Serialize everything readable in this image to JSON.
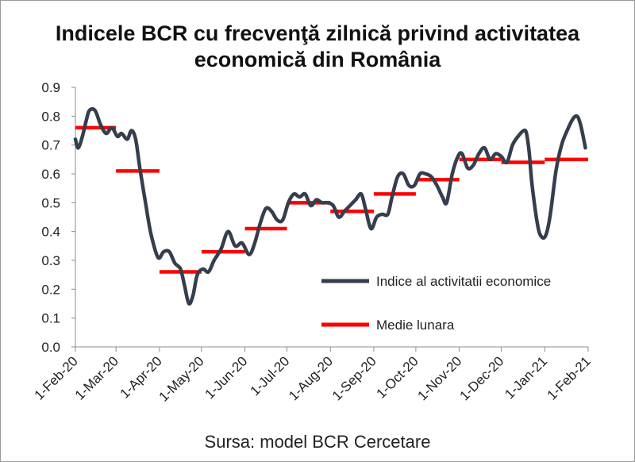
{
  "chart_data": {
    "type": "line",
    "title_lines": [
      "Indicele BCR cu frecvenţă zilnică privind activitatea",
      "economică din România"
    ],
    "source": "Sursa: model BCR Cercetare",
    "xlabel": "",
    "ylabel": "",
    "ylim": [
      0,
      0.9
    ],
    "y_ticks": [
      "0.0",
      "0.1",
      "0.2",
      "0.3",
      "0.4",
      "0.5",
      "0.6",
      "0.7",
      "0.8",
      "0.9"
    ],
    "x_ticks": [
      "1-Feb-20",
      "1-Mar-20",
      "1-Apr-20",
      "1-May-20",
      "1-Jun-20",
      "1-Jul-20",
      "1-Aug-20",
      "1-Sep-20",
      "1-Oct-20",
      "1-Nov-20",
      "1-Dec-20",
      "1-Jan-21",
      "1-Feb-21"
    ],
    "grid": false,
    "legend_position": "lower-right",
    "series": [
      {
        "name": "Indice al activitatii economice",
        "color": "#353e4d",
        "kind": "daily",
        "points": [
          [
            "2020-02-01",
            0.72
          ],
          [
            "2020-02-03",
            0.69
          ],
          [
            "2020-02-06",
            0.73
          ],
          [
            "2020-02-09",
            0.79
          ],
          [
            "2020-02-11",
            0.82
          ],
          [
            "2020-02-15",
            0.82
          ],
          [
            "2020-02-19",
            0.77
          ],
          [
            "2020-02-23",
            0.74
          ],
          [
            "2020-02-27",
            0.76
          ],
          [
            "2020-03-02",
            0.73
          ],
          [
            "2020-03-05",
            0.74
          ],
          [
            "2020-03-09",
            0.72
          ],
          [
            "2020-03-12",
            0.75
          ],
          [
            "2020-03-15",
            0.72
          ],
          [
            "2020-03-18",
            0.62
          ],
          [
            "2020-03-22",
            0.5
          ],
          [
            "2020-03-26",
            0.39
          ],
          [
            "2020-03-31",
            0.31
          ],
          [
            "2020-04-04",
            0.33
          ],
          [
            "2020-04-08",
            0.33
          ],
          [
            "2020-04-12",
            0.29
          ],
          [
            "2020-04-16",
            0.27
          ],
          [
            "2020-04-19",
            0.21
          ],
          [
            "2020-04-22",
            0.15
          ],
          [
            "2020-04-25",
            0.18
          ],
          [
            "2020-04-28",
            0.25
          ],
          [
            "2020-05-02",
            0.27
          ],
          [
            "2020-05-06",
            0.26
          ],
          [
            "2020-05-10",
            0.3
          ],
          [
            "2020-05-15",
            0.34
          ],
          [
            "2020-05-20",
            0.4
          ],
          [
            "2020-05-25",
            0.35
          ],
          [
            "2020-05-30",
            0.36
          ],
          [
            "2020-06-04",
            0.32
          ],
          [
            "2020-06-08",
            0.36
          ],
          [
            "2020-06-12",
            0.43
          ],
          [
            "2020-06-16",
            0.48
          ],
          [
            "2020-06-20",
            0.47
          ],
          [
            "2020-06-24",
            0.44
          ],
          [
            "2020-06-28",
            0.44
          ],
          [
            "2020-07-02",
            0.5
          ],
          [
            "2020-07-06",
            0.53
          ],
          [
            "2020-07-10",
            0.52
          ],
          [
            "2020-07-14",
            0.53
          ],
          [
            "2020-07-18",
            0.49
          ],
          [
            "2020-07-22",
            0.51
          ],
          [
            "2020-07-26",
            0.5
          ],
          [
            "2020-07-30",
            0.5
          ],
          [
            "2020-08-03",
            0.49
          ],
          [
            "2020-08-07",
            0.45
          ],
          [
            "2020-08-11",
            0.47
          ],
          [
            "2020-08-15",
            0.49
          ],
          [
            "2020-08-19",
            0.51
          ],
          [
            "2020-08-23",
            0.53
          ],
          [
            "2020-08-26",
            0.48
          ],
          [
            "2020-08-30",
            0.41
          ],
          [
            "2020-09-03",
            0.45
          ],
          [
            "2020-09-07",
            0.46
          ],
          [
            "2020-09-11",
            0.46
          ],
          [
            "2020-09-14",
            0.52
          ],
          [
            "2020-09-18",
            0.59
          ],
          [
            "2020-09-22",
            0.6
          ],
          [
            "2020-09-26",
            0.56
          ],
          [
            "2020-09-30",
            0.56
          ],
          [
            "2020-10-04",
            0.6
          ],
          [
            "2020-10-08",
            0.6
          ],
          [
            "2020-10-12",
            0.59
          ],
          [
            "2020-10-16",
            0.56
          ],
          [
            "2020-10-20",
            0.52
          ],
          [
            "2020-10-23",
            0.5
          ],
          [
            "2020-10-27",
            0.6
          ],
          [
            "2020-10-31",
            0.66
          ],
          [
            "2020-11-03",
            0.67
          ],
          [
            "2020-11-07",
            0.62
          ],
          [
            "2020-11-11",
            0.63
          ],
          [
            "2020-11-15",
            0.67
          ],
          [
            "2020-11-19",
            0.69
          ],
          [
            "2020-11-23",
            0.65
          ],
          [
            "2020-11-27",
            0.67
          ],
          [
            "2020-12-01",
            0.66
          ],
          [
            "2020-12-05",
            0.64
          ],
          [
            "2020-12-09",
            0.7
          ],
          [
            "2020-12-13",
            0.73
          ],
          [
            "2020-12-17",
            0.75
          ],
          [
            "2020-12-19",
            0.74
          ],
          [
            "2020-12-21",
            0.67
          ],
          [
            "2020-12-23",
            0.56
          ],
          [
            "2020-12-27",
            0.42
          ],
          [
            "2020-12-30",
            0.38
          ],
          [
            "2021-01-02",
            0.39
          ],
          [
            "2021-01-05",
            0.46
          ],
          [
            "2021-01-09",
            0.61
          ],
          [
            "2021-01-13",
            0.7
          ],
          [
            "2021-01-17",
            0.75
          ],
          [
            "2021-01-21",
            0.79
          ],
          [
            "2021-01-24",
            0.8
          ],
          [
            "2021-01-26",
            0.78
          ],
          [
            "2021-01-28",
            0.74
          ],
          [
            "2021-01-30",
            0.69
          ]
        ]
      },
      {
        "name": "Medie lunara",
        "color": "#ff0000",
        "kind": "monthly",
        "segments": [
          [
            "2020-02-01",
            "2020-03-01",
            0.76
          ],
          [
            "2020-03-01",
            "2020-04-01",
            0.61
          ],
          [
            "2020-04-01",
            "2020-05-01",
            0.26
          ],
          [
            "2020-05-01",
            "2020-06-01",
            0.33
          ],
          [
            "2020-06-01",
            "2020-07-01",
            0.41
          ],
          [
            "2020-07-01",
            "2020-08-01",
            0.5
          ],
          [
            "2020-08-01",
            "2020-09-01",
            0.47
          ],
          [
            "2020-09-01",
            "2020-10-01",
            0.53
          ],
          [
            "2020-10-01",
            "2020-11-01",
            0.58
          ],
          [
            "2020-11-01",
            "2020-12-01",
            0.65
          ],
          [
            "2020-12-01",
            "2021-01-01",
            0.64
          ],
          [
            "2021-01-01",
            "2021-02-01",
            0.65
          ]
        ]
      }
    ]
  }
}
